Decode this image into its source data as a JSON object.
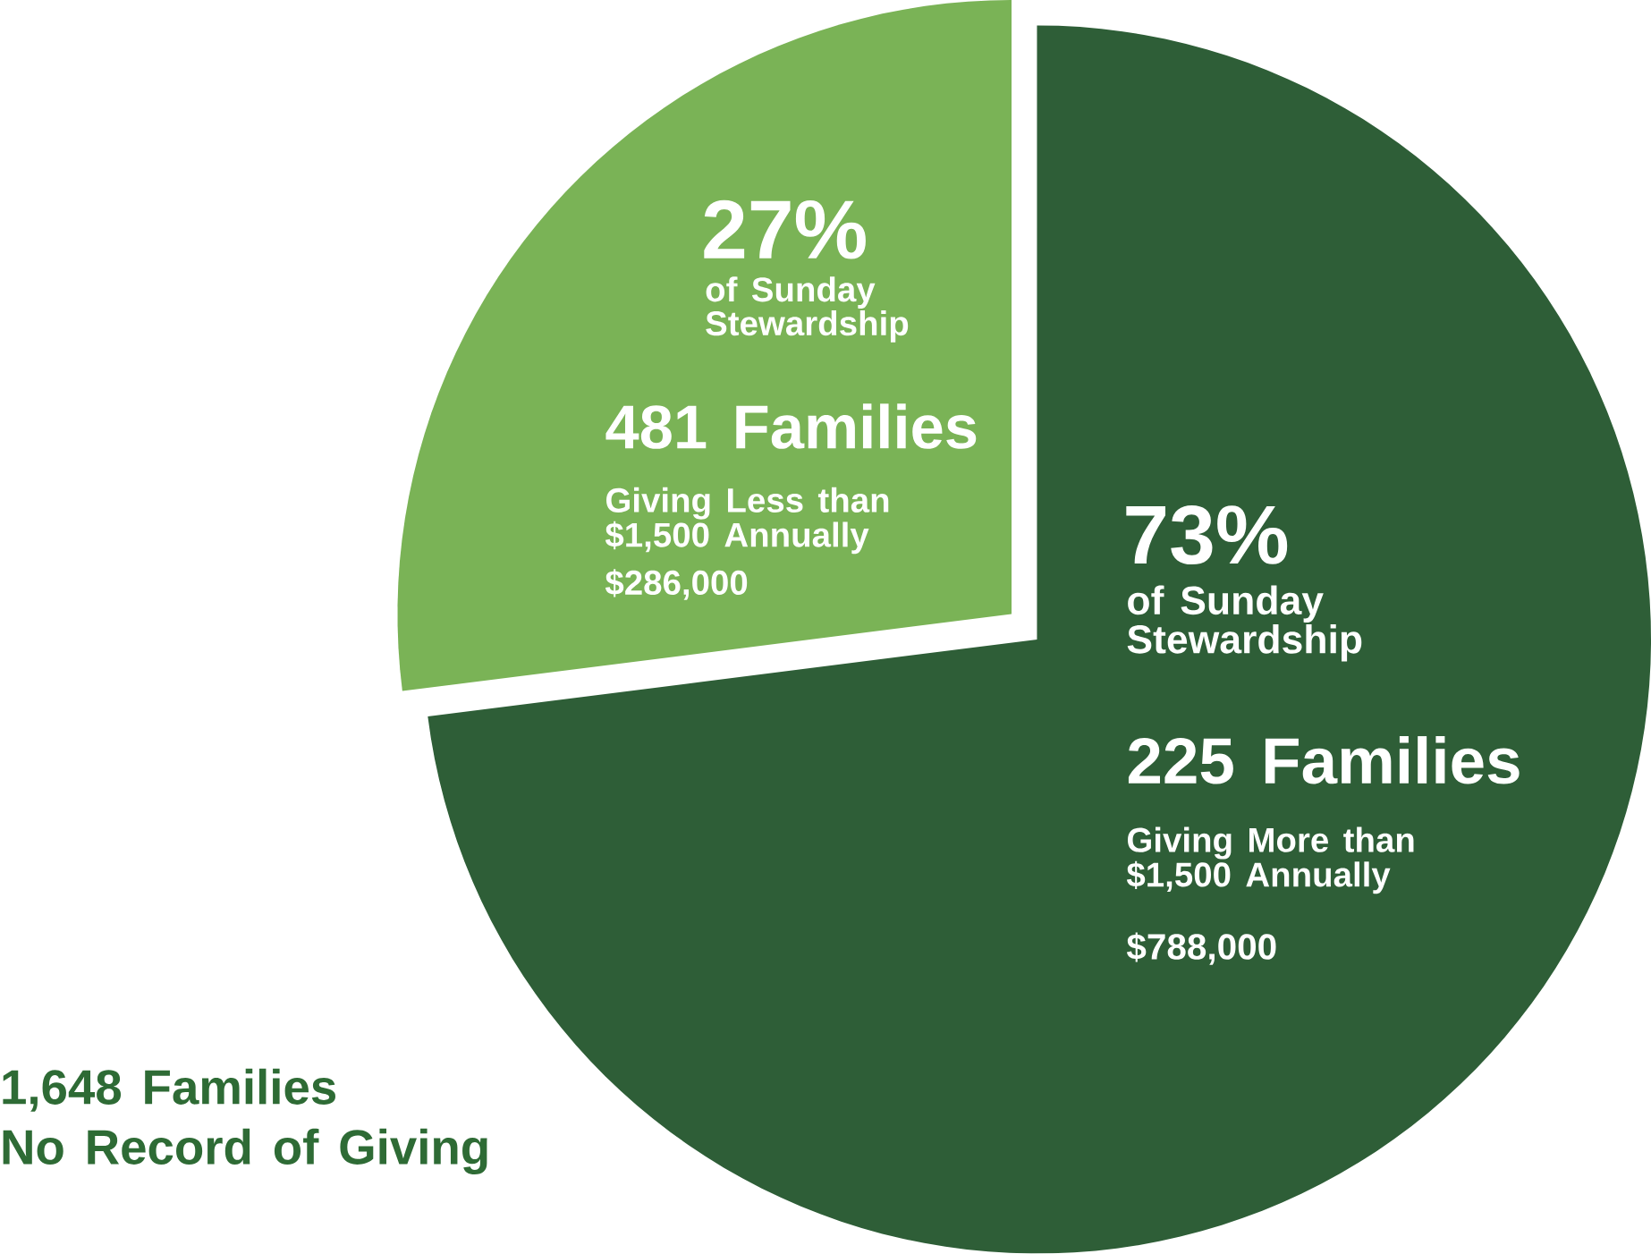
{
  "chart_data": {
    "type": "pie",
    "categories": [
      "Giving More than $1,500 Annually",
      "Giving Less than $1,500 Annually"
    ],
    "values": [
      73,
      27
    ],
    "colors": [
      "#2e5e37",
      "#7ab356"
    ],
    "value_labels": [
      "73%",
      "27%"
    ],
    "annotations": [
      "of Sunday Stewardship",
      "225 Families",
      "$788,000",
      "of Sunday Stewardship",
      "481 Families",
      "$286,000",
      "1,648 Families",
      "No Record of Giving"
    ]
  }
}
